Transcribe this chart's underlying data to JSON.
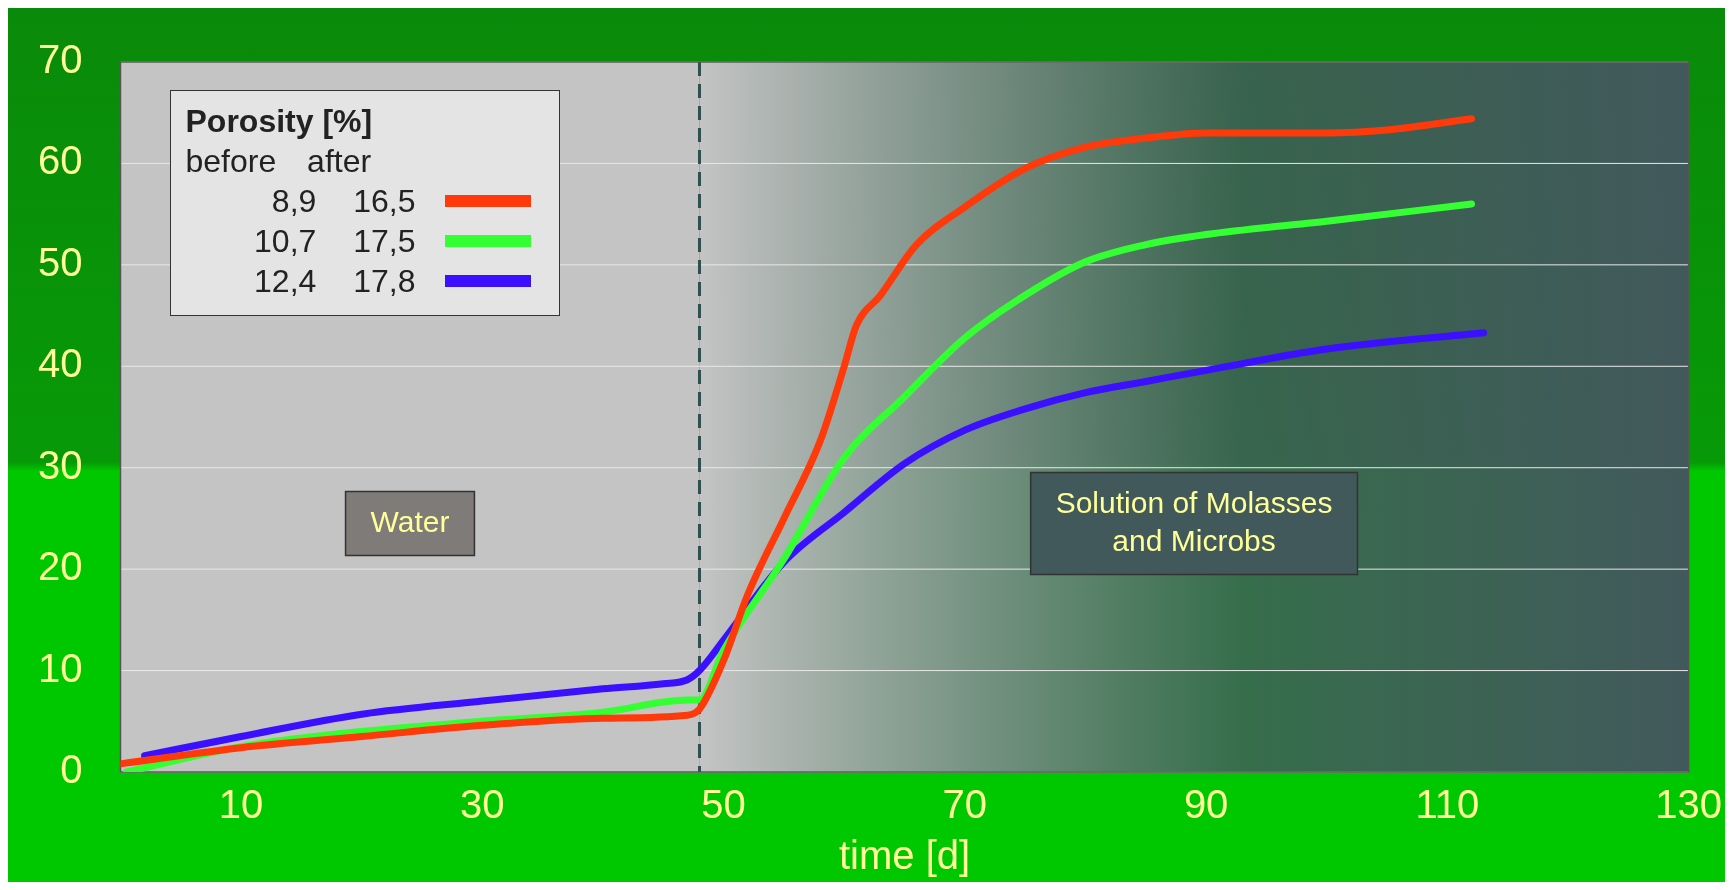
{
  "chart_data": {
    "type": "line",
    "xlabel": "time [d]",
    "legend_title": "Porosity [%]",
    "legend": "top left",
    "annotations": [
      "before after"
    ],
    "xlim": [
      0,
      130
    ],
    "xticks": [
      10,
      30,
      50,
      70,
      90,
      110,
      130
    ],
    "ylim": [
      0,
      70
    ],
    "yticks": [
      0,
      10,
      20,
      30,
      40,
      50,
      60,
      70
    ],
    "grid": "y",
    "ref_lines": [
      {
        "axis": "x",
        "value": 48,
        "color": "#2f5050",
        "line_style": "dashed"
      }
    ],
    "bands": [
      {
        "axis": "x",
        "from": 0,
        "to": 48,
        "label": "Water",
        "color": "#c4c4c4"
      },
      {
        "axis": "x",
        "from": 48,
        "to": 130,
        "label": "Solution of Molasses\nand Microbs",
        "color": "#42595c"
      }
    ],
    "series": [
      {
        "name": "8,9 16,5",
        "color": "#ff3a0a",
        "x": [
          0,
          10,
          20,
          30,
          40,
          47,
          48,
          50,
          52,
          55,
          58,
          60,
          61,
          63,
          66,
          70,
          75,
          80,
          85,
          90,
          100,
          105,
          112
        ],
        "values": [
          0.8,
          2.4,
          3.5,
          4.6,
          5.3,
          5.6,
          6.2,
          11,
          17.5,
          25,
          32.6,
          40,
          44,
          47,
          52,
          55.7,
          59.5,
          61.6,
          62.5,
          63,
          63,
          63.3,
          64.4
        ]
      },
      {
        "name": "10,7 17,5",
        "color": "#33ff33",
        "x": [
          0.5,
          10,
          20,
          30,
          40,
          47,
          48,
          50,
          55,
          60,
          65,
          70,
          75,
          80,
          85,
          90,
          100,
          112
        ],
        "values": [
          0,
          2.5,
          4,
          5,
          5.9,
          7.1,
          7.1,
          12,
          21,
          31,
          37,
          42.8,
          47,
          50.3,
          52,
          53,
          54.3,
          56
        ]
      },
      {
        "name": "12,4 17,8",
        "color": "#3a10ff",
        "x": [
          2,
          10,
          20,
          30,
          40,
          45,
          47,
          48,
          50,
          55,
          60,
          65,
          70,
          75,
          80,
          85,
          90,
          100,
          113
        ],
        "values": [
          1.6,
          3.5,
          5.7,
          7,
          8.2,
          8.7,
          9.1,
          10,
          13,
          20.7,
          25.6,
          30.4,
          33.7,
          35.8,
          37.4,
          38.5,
          39.6,
          41.7,
          43.3
        ]
      }
    ]
  }
}
